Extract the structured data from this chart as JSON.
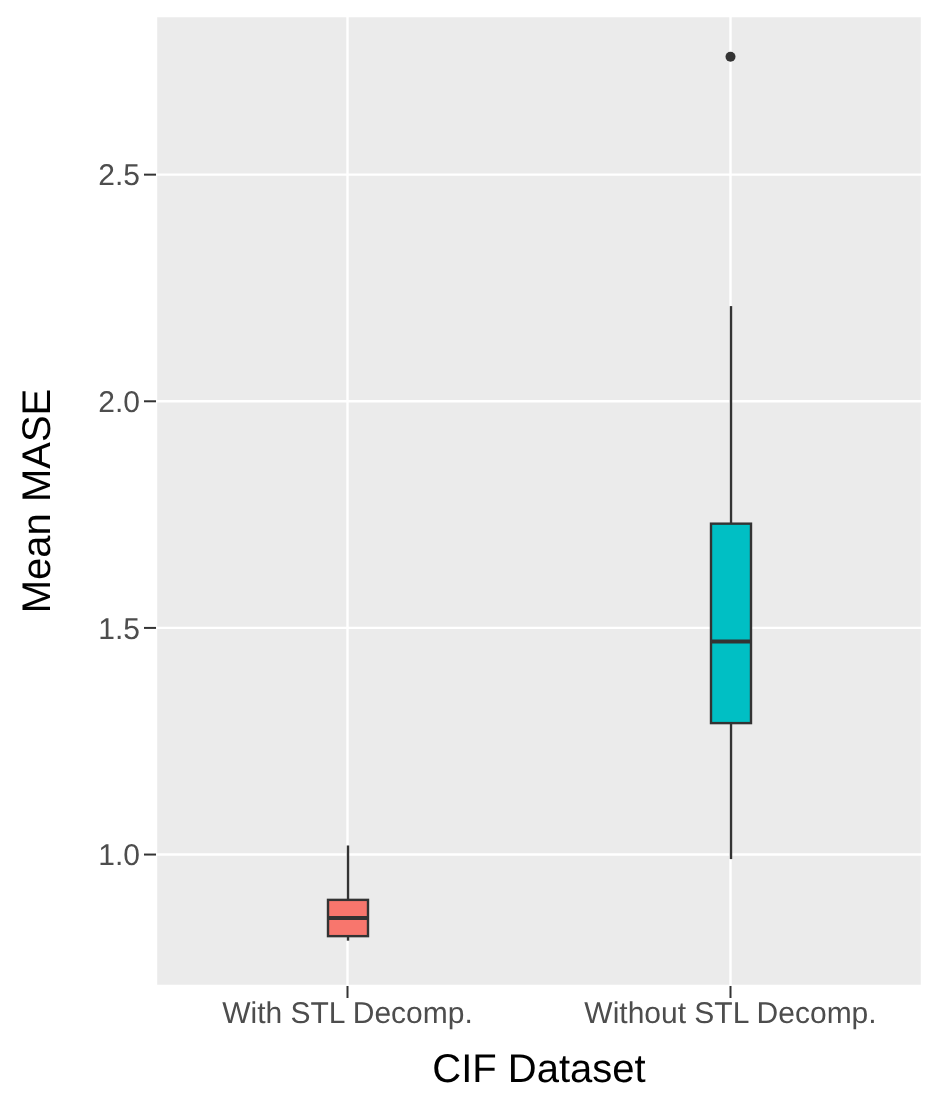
{
  "chart_data": {
    "type": "box",
    "xlabel": "CIF Dataset",
    "ylabel": "Mean MASE",
    "categories": [
      "With STL Decomp.",
      "Without STL Decomp."
    ],
    "colors": [
      "#f8766d",
      "#00bfc4"
    ],
    "boxes": [
      {
        "low": 0.81,
        "q1": 0.82,
        "median": 0.86,
        "q3": 0.9,
        "high": 1.02
      },
      {
        "low": 0.99,
        "q1": 1.29,
        "median": 1.47,
        "q3": 1.73,
        "high": 2.21,
        "outliers": [
          2.76
        ]
      }
    ],
    "ylim": [
      0.71,
      2.85
    ],
    "yticks": [
      {
        "value": 1,
        "label": "1.0"
      },
      {
        "value": 1.5,
        "label": "1.5"
      },
      {
        "value": 2,
        "label": "2.0"
      },
      {
        "value": 2.5,
        "label": "2.5"
      }
    ],
    "grid": true
  }
}
